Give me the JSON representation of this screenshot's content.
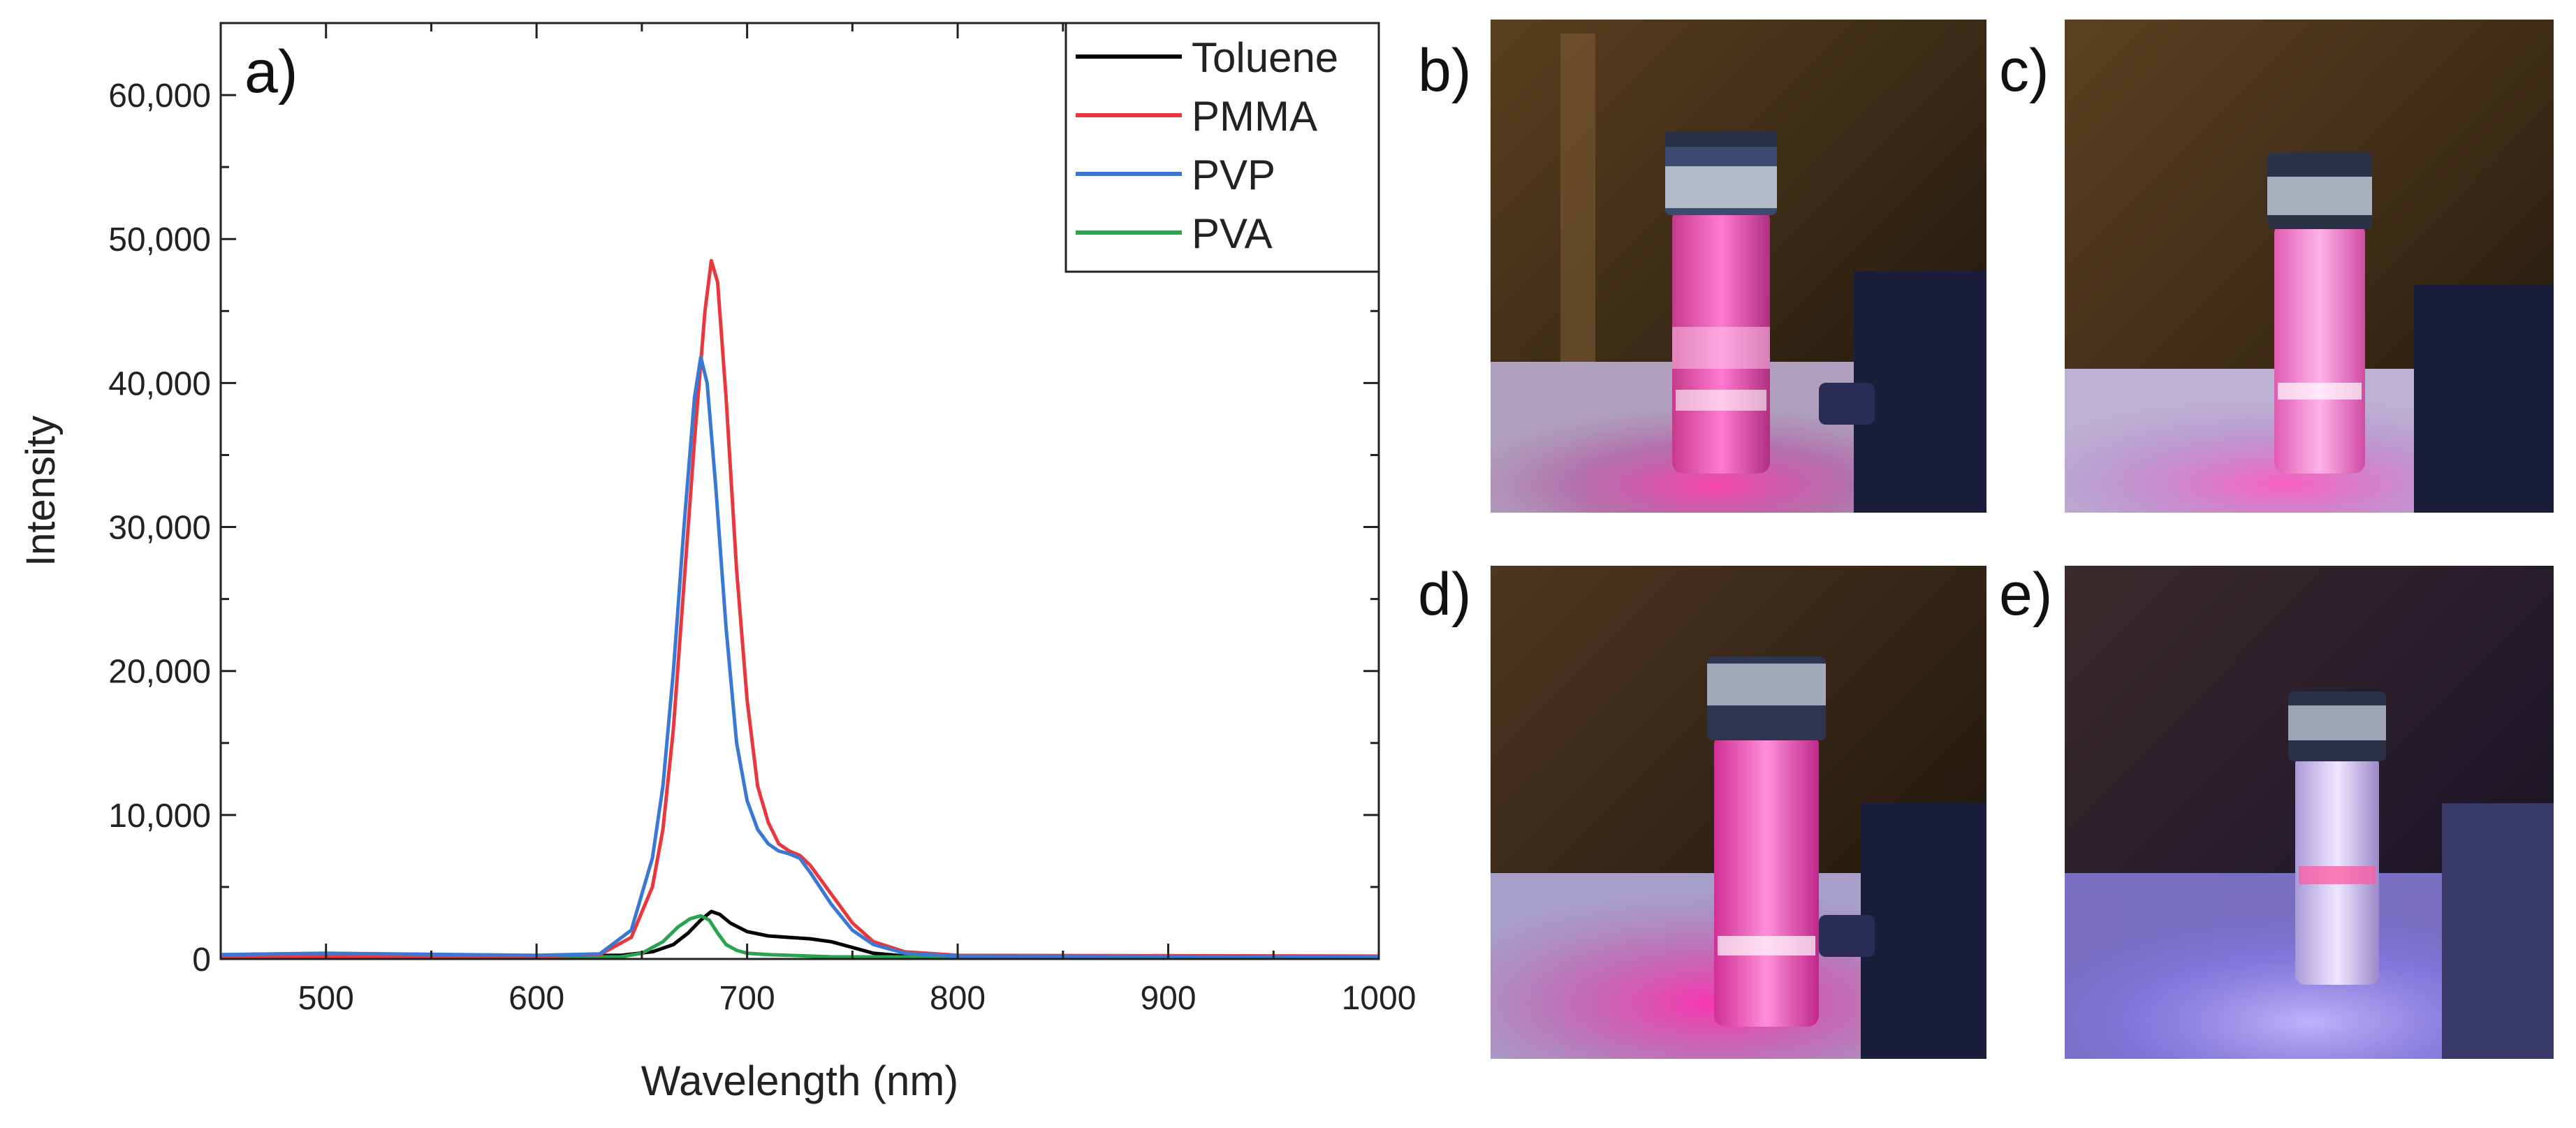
{
  "chart_data": {
    "type": "line",
    "panel_label": "a)",
    "xlabel": "Wavelength (nm)",
    "ylabel": "Intensity",
    "xlim": [
      450,
      1000
    ],
    "ylim": [
      0,
      65000
    ],
    "x_ticks": [
      500,
      600,
      700,
      800,
      900,
      1000
    ],
    "x_tick_labels": [
      "500",
      "600",
      "700",
      "800",
      "900",
      "1000"
    ],
    "y_ticks": [
      0,
      10000,
      20000,
      30000,
      40000,
      50000,
      60000
    ],
    "y_tick_labels": [
      "0",
      "10,000",
      "20,000",
      "30,000",
      "40,000",
      "50,000",
      "60,000"
    ],
    "legend_position": "top-right",
    "series": [
      {
        "name": "Toluene",
        "color": "#000000",
        "x": [
          450,
          600,
          640,
          655,
          665,
          672,
          678,
          683,
          687,
          692,
          700,
          710,
          720,
          730,
          740,
          750,
          760,
          775,
          790,
          1000
        ],
        "y": [
          200,
          200,
          250,
          500,
          1000,
          1800,
          2700,
          3300,
          3100,
          2500,
          1900,
          1600,
          1500,
          1400,
          1200,
          800,
          400,
          200,
          150,
          150
        ]
      },
      {
        "name": "PMMA",
        "color": "#e8383d",
        "x": [
          450,
          500,
          600,
          630,
          645,
          655,
          660,
          665,
          670,
          675,
          680,
          683,
          686,
          690,
          695,
          700,
          705,
          710,
          715,
          720,
          725,
          730,
          740,
          750,
          760,
          775,
          800,
          1000
        ],
        "y": [
          200,
          200,
          200,
          300,
          1500,
          5000,
          9000,
          16000,
          26000,
          36000,
          45000,
          48500,
          47000,
          39000,
          27000,
          18000,
          12000,
          9500,
          8000,
          7500,
          7200,
          6500,
          4500,
          2500,
          1200,
          500,
          250,
          200
        ]
      },
      {
        "name": "PVP",
        "color": "#3a78d6",
        "x": [
          450,
          500,
          600,
          630,
          645,
          655,
          660,
          665,
          670,
          675,
          678,
          681,
          685,
          690,
          695,
          700,
          705,
          710,
          715,
          720,
          725,
          730,
          740,
          750,
          760,
          775,
          800,
          1000
        ],
        "y": [
          300,
          400,
          250,
          350,
          2000,
          7000,
          12000,
          20000,
          30000,
          39000,
          41800,
          40000,
          33000,
          23000,
          15000,
          11000,
          9000,
          8000,
          7500,
          7300,
          7000,
          6000,
          3800,
          2000,
          1000,
          400,
          200,
          150
        ]
      },
      {
        "name": "PVA",
        "color": "#2aa350",
        "x": [
          450,
          600,
          640,
          650,
          660,
          667,
          673,
          678,
          682,
          686,
          690,
          695,
          700,
          710,
          720,
          740,
          1000
        ],
        "y": [
          100,
          100,
          150,
          400,
          1200,
          2200,
          2800,
          3000,
          2700,
          1800,
          1000,
          600,
          400,
          300,
          250,
          150,
          100
        ]
      }
    ]
  },
  "panels": {
    "b_label": "b)",
    "c_label": "c)",
    "d_label": "d)",
    "e_label": "e)"
  }
}
